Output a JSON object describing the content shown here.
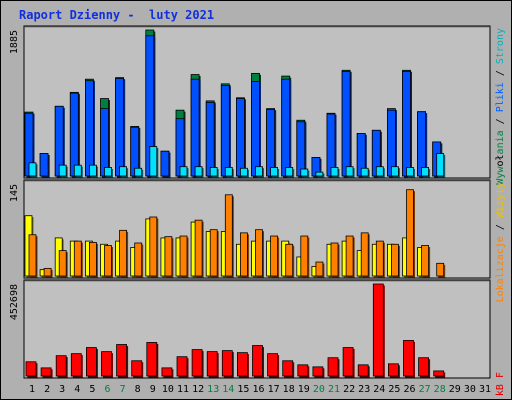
{
  "title": "Raport Dzienny -  luty 2021",
  "right_label_top": {
    "parts": [
      {
        "text": "Wyw",
        "color": "#008040"
      },
      {
        "text": "o",
        "color": "#000"
      },
      {
        "text": "ł",
        "color": "#000"
      },
      {
        "text": "ania",
        "color": "#008040"
      },
      {
        "text": " / ",
        "color": "#000"
      },
      {
        "text": "Pliki",
        "color": "#0060ff"
      },
      {
        "text": " / ",
        "color": "#000"
      },
      {
        "text": "Strony",
        "color": "#00b0c0"
      }
    ]
  },
  "right_label_mid": {
    "parts": [
      {
        "text": "Lokalizacje",
        "color": "#ff8000"
      },
      {
        "text": " / ",
        "color": "#000"
      },
      {
        "text": "Wizyty",
        "color": "#f0c000"
      }
    ]
  },
  "right_label_bot": {
    "parts": [
      {
        "text": "kB F",
        "color": "#e00000"
      }
    ]
  },
  "colors": {
    "background": "#b0b0b0",
    "plot": "#c0c0c0",
    "hits": "#008040",
    "files": "#0050ff",
    "pages": "#00e0ff",
    "visits": "#ffff00",
    "sites": "#ff8000",
    "kbytes": "#ff0000",
    "title": "#1030e0",
    "weekend_day": "#008040"
  },
  "chart_data": [
    {
      "type": "bar",
      "name": "top",
      "ymax_label": "1885",
      "ymax": 1885,
      "series": [
        {
          "name": "Wywołania",
          "values": [
            825,
            290,
            900,
            1080,
            1250,
            1000,
            1270,
            640,
            1885,
            320,
            850,
            1310,
            970,
            1190,
            1010,
            1325,
            870,
            1290,
            720,
            240,
            810,
            1365,
            550,
            590,
            870,
            1365,
            830,
            440
          ]
        },
        {
          "name": "Pliki",
          "values": [
            810,
            290,
            900,
            1070,
            1230,
            870,
            1260,
            630,
            1810,
            320,
            740,
            1250,
            950,
            1170,
            1000,
            1220,
            860,
            1250,
            700,
            240,
            800,
            1350,
            550,
            590,
            850,
            1350,
            830,
            440
          ]
        },
        {
          "name": "Strony",
          "values": [
            170,
            0,
            140,
            140,
            140,
            110,
            120,
            100,
            380,
            0,
            120,
            120,
            110,
            110,
            100,
            120,
            110,
            110,
            90,
            50,
            110,
            120,
            100,
            120,
            120,
            110,
            110,
            290
          ]
        }
      ]
    },
    {
      "type": "bar",
      "name": "middle",
      "ymax_label": "145",
      "ymax": 145,
      "series": [
        {
          "name": "Wizyty",
          "values": [
            95,
            10,
            60,
            55,
            55,
            50,
            55,
            45,
            90,
            60,
            60,
            85,
            70,
            70,
            50,
            55,
            55,
            55,
            30,
            15,
            50,
            55,
            40,
            50,
            50,
            60,
            45,
            0
          ]
        },
        {
          "name": "Lokalizacje",
          "values": [
            65,
            12,
            40,
            55,
            53,
            48,
            72,
            52,
            93,
            62,
            63,
            88,
            73,
            128,
            68,
            73,
            63,
            50,
            63,
            22,
            52,
            63,
            68,
            55,
            50,
            136,
            48,
            20
          ]
        }
      ]
    },
    {
      "type": "bar",
      "name": "bottom",
      "ymax_label": "452698",
      "ymax": 452698,
      "series": [
        {
          "name": "kB F",
          "values": [
            70000,
            40000,
            100000,
            110000,
            140000,
            120000,
            155000,
            75000,
            165000,
            40000,
            95000,
            130000,
            120000,
            125000,
            115000,
            150000,
            110000,
            75000,
            55000,
            45000,
            90000,
            140000,
            55000,
            452698,
            60000,
            175000,
            90000,
            25000
          ]
        }
      ]
    }
  ],
  "x_labels": [
    {
      "text": "1",
      "weekend": false
    },
    {
      "text": "2",
      "weekend": false
    },
    {
      "text": "3",
      "weekend": false
    },
    {
      "text": "4",
      "weekend": false
    },
    {
      "text": "5",
      "weekend": false
    },
    {
      "text": "6",
      "weekend": true
    },
    {
      "text": "7",
      "weekend": true
    },
    {
      "text": "8",
      "weekend": false
    },
    {
      "text": "9",
      "weekend": false
    },
    {
      "text": "10",
      "weekend": false
    },
    {
      "text": "11",
      "weekend": false
    },
    {
      "text": "12",
      "weekend": false
    },
    {
      "text": "13",
      "weekend": true
    },
    {
      "text": "14",
      "weekend": true
    },
    {
      "text": "15",
      "weekend": false
    },
    {
      "text": "16",
      "weekend": false
    },
    {
      "text": "17",
      "weekend": false
    },
    {
      "text": "18",
      "weekend": false
    },
    {
      "text": "19",
      "weekend": false
    },
    {
      "text": "20",
      "weekend": true
    },
    {
      "text": "21",
      "weekend": true
    },
    {
      "text": "22",
      "weekend": false
    },
    {
      "text": "23",
      "weekend": false
    },
    {
      "text": "24",
      "weekend": false
    },
    {
      "text": "25",
      "weekend": false
    },
    {
      "text": "26",
      "weekend": false
    },
    {
      "text": "27",
      "weekend": true
    },
    {
      "text": "28",
      "weekend": true
    },
    {
      "text": "29",
      "weekend": false
    },
    {
      "text": "30",
      "weekend": false
    },
    {
      "text": "31",
      "weekend": false
    }
  ]
}
